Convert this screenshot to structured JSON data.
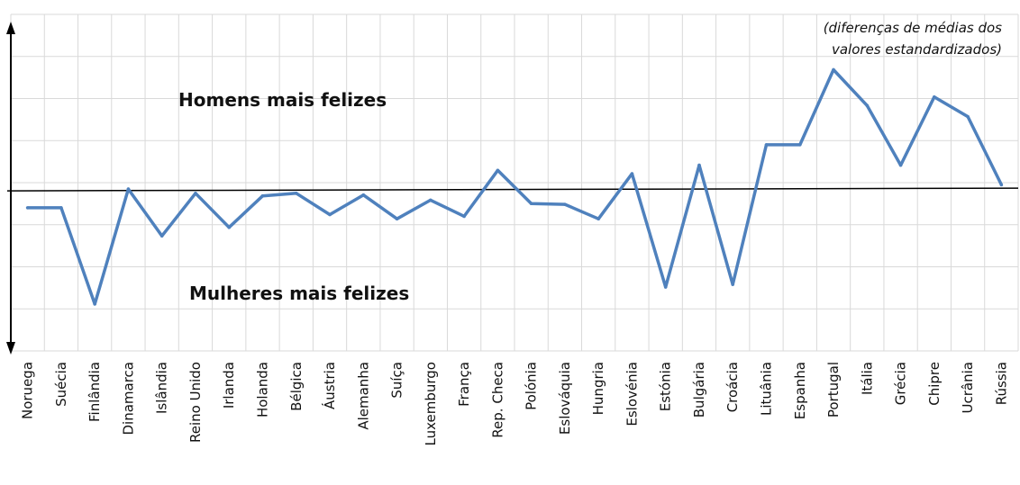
{
  "chart_data": {
    "type": "line",
    "title": "",
    "xlabel": "",
    "ylabel": "",
    "annotation_top": "Homens mais felizes",
    "annotation_bottom": "Mulheres mais felizes",
    "note_lines": [
      "(diferenças de médias dos",
      "valores estandardizados)"
    ],
    "categories": [
      "Noruega",
      "Suécia",
      "Finlândia",
      "Dinamarca",
      "Islândia",
      "Reino Unido",
      "Irlanda",
      "Holanda",
      "Bélgica",
      "Áustria",
      "Alemanha",
      "Suíça",
      "Luxemburgo",
      "França",
      "Rep. Checa",
      "Polónia",
      "Eslováquia",
      "Hungria",
      "Eslovénia",
      "Estónia",
      "Bulgária",
      "Croácia",
      "Lituânia",
      "Espanha",
      "Portugal",
      "Itália",
      "Grécia",
      "Chipre",
      "Ucrânia",
      "Rússia"
    ],
    "series": [
      {
        "values": [
          -0.22,
          -0.22,
          -1.35,
          0.0,
          -0.55,
          -0.05,
          -0.45,
          -0.08,
          -0.05,
          -0.3,
          -0.07,
          -0.35,
          -0.13,
          -0.32,
          0.22,
          -0.17,
          -0.18,
          -0.35,
          0.18,
          -1.15,
          0.28,
          -1.12,
          0.52,
          0.52,
          1.4,
          0.98,
          0.28,
          1.08,
          0.85,
          0.05
        ]
      }
    ],
    "ylim": [
      -1.9,
      2.05
    ],
    "grid": true,
    "colors": {
      "line": "#4f81bd",
      "grid": "#d9d9d9",
      "axis": "#000000"
    }
  }
}
